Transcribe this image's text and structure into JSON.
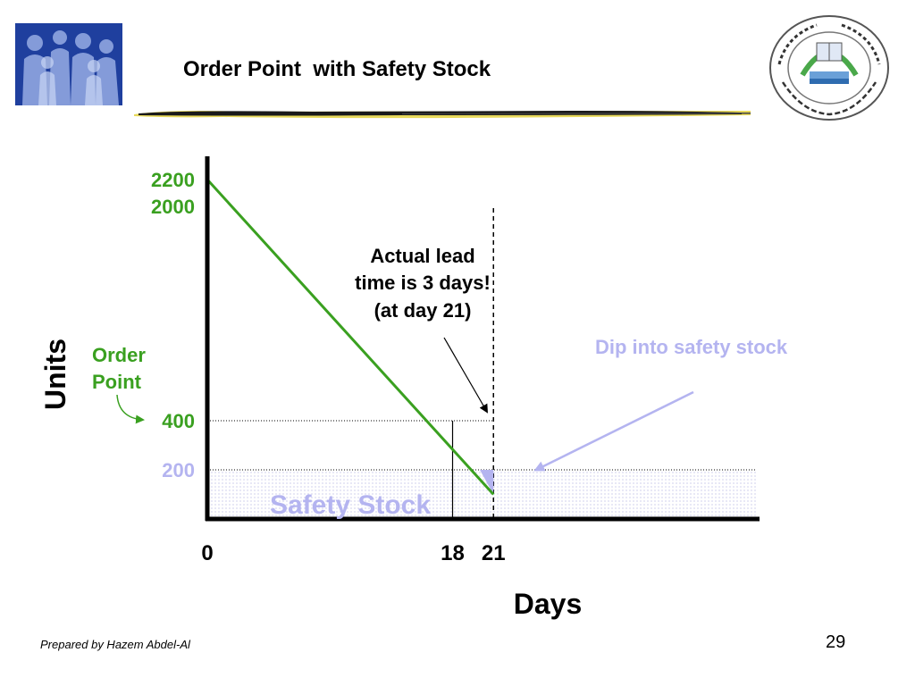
{
  "slide": {
    "title": "Order Point  with Safety Stock",
    "footer": "Prepared by Hazem Abdel-Al",
    "page_number": "29",
    "left_logo_icon": "people-silhouettes-logo",
    "right_logo_icon": "university-seal-logo"
  },
  "chart_data": {
    "type": "line",
    "xlabel": "Days",
    "ylabel": "Units",
    "x_ticks": [
      "0",
      "18",
      "21"
    ],
    "y_ticks": [
      "200",
      "400",
      "2000",
      "2200"
    ],
    "series": [
      {
        "x": [
          0,
          21
        ],
        "y": [
          2200,
          100
        ]
      }
    ],
    "reference_lines": {
      "order_point": 400,
      "safety_stock": 200,
      "order_day": 18,
      "actual_lead_time_day": 21
    },
    "annotations": {
      "order_point_label": [
        "Order",
        "Point"
      ],
      "lead_time_note": [
        "Actual lead",
        "time is 3 days!",
        "(at day 21)"
      ],
      "dip_label": "Dip into safety stock",
      "safety_stock_label": "Safety Stock"
    },
    "colors": {
      "line": "#3aa020",
      "green_text": "#3aa020",
      "lavender": "#b4b4f0",
      "axis": "#000000"
    }
  }
}
